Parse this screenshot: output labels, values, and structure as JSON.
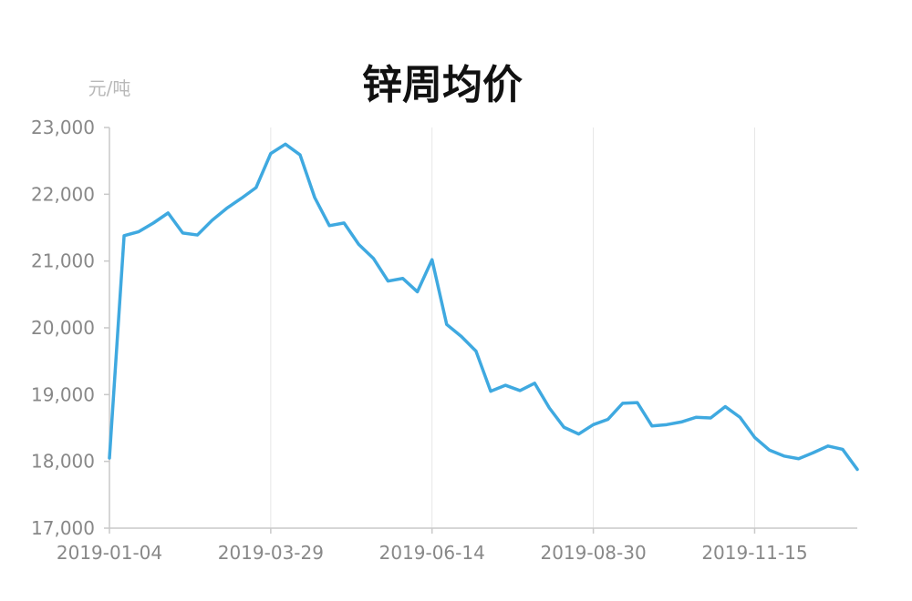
{
  "chart_data": {
    "type": "line",
    "title": "锌周均价",
    "ylabel": "元/吨",
    "xlabel": "",
    "ylim": [
      17000,
      23000
    ],
    "yticks": [
      17000,
      18000,
      19000,
      20000,
      21000,
      22000,
      23000
    ],
    "ytick_labels": [
      "17,000",
      "18,000",
      "19,000",
      "20,000",
      "21,000",
      "22,000",
      "23,000"
    ],
    "xtick_labels": [
      "2019-01-04",
      "2019-03-29",
      "2019-06-14",
      "2019-08-30",
      "2019-11-15"
    ],
    "xtick_index": [
      0,
      11,
      22,
      33,
      44
    ],
    "grid": "vertical",
    "legend": "none",
    "series_color": "#3fa9e0",
    "series": [
      {
        "values": [
          18050,
          21380,
          21440,
          21570,
          21720,
          21420,
          21390,
          21610,
          21790,
          21940,
          22100,
          22610,
          22750,
          22590,
          21950,
          21530,
          21570,
          21250,
          21040,
          20700,
          20740,
          20540,
          21020,
          20050,
          19870,
          19650,
          19050,
          19140,
          19060,
          19170,
          18800,
          18510,
          18410,
          18550,
          18630,
          18870,
          18880,
          18530,
          18550,
          18590,
          18660,
          18650,
          18820,
          18660,
          18360,
          18170,
          18080,
          18040,
          18130,
          18230,
          18180,
          17880
        ]
      }
    ]
  }
}
